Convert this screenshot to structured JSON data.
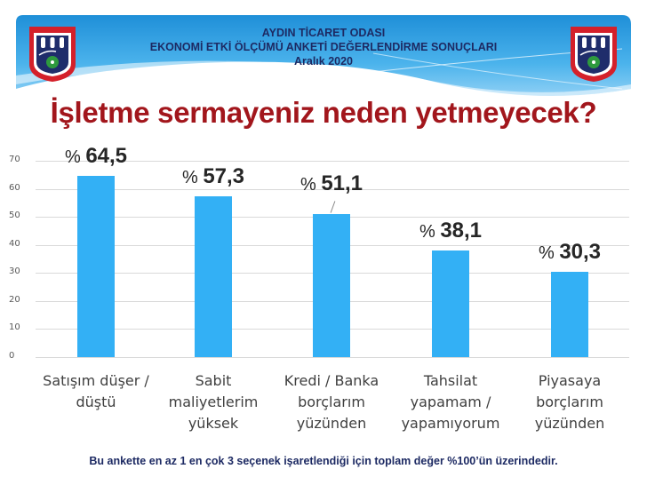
{
  "header": {
    "line1": "AYDIN TİCARET ODASI",
    "line2": "EKONOMİ ETKİ ÖLÇÜMÜ ANKETİ DEĞERLENDİRME SONUÇLARI",
    "line3": "Aralık 2020",
    "logo_year": "1904",
    "logo_text": "AYDIN TİCARET ODASI"
  },
  "title": "İşletme sermayeniz neden yetmeyecek?",
  "footnote": "Bu ankette en az 1 en çok 3 seçenek işaretlendiği için toplam  değer %100’ün üzerindedir.",
  "colors": {
    "bar": "#33b0f5",
    "title": "#a2161c",
    "header": "#1d2a63",
    "banner": "#2e9fe0"
  },
  "chart_data": {
    "type": "bar",
    "title": "İşletme sermayeniz neden yetmeyecek?",
    "categories": [
      "Satışım düşer / düştü",
      "Sabit maliyetlerim yüksek",
      "Kredi / Banka borçlarım yüzünden",
      "Tahsilat yapamam / yapamıyorum",
      "Piyasaya borçlarım yüzünden"
    ],
    "values": [
      64.5,
      57.3,
      51.1,
      38.1,
      30.3
    ],
    "value_labels": [
      "64,5",
      "57,3",
      "51,1",
      "38,1",
      "30,3"
    ],
    "value_prefix": "%",
    "yticks": [
      "0",
      "10",
      "20",
      "30",
      "40",
      "50",
      "60",
      "70"
    ],
    "xlabel": "",
    "ylabel": "",
    "ylim": [
      0,
      70
    ],
    "grid": true,
    "legend": "none"
  }
}
